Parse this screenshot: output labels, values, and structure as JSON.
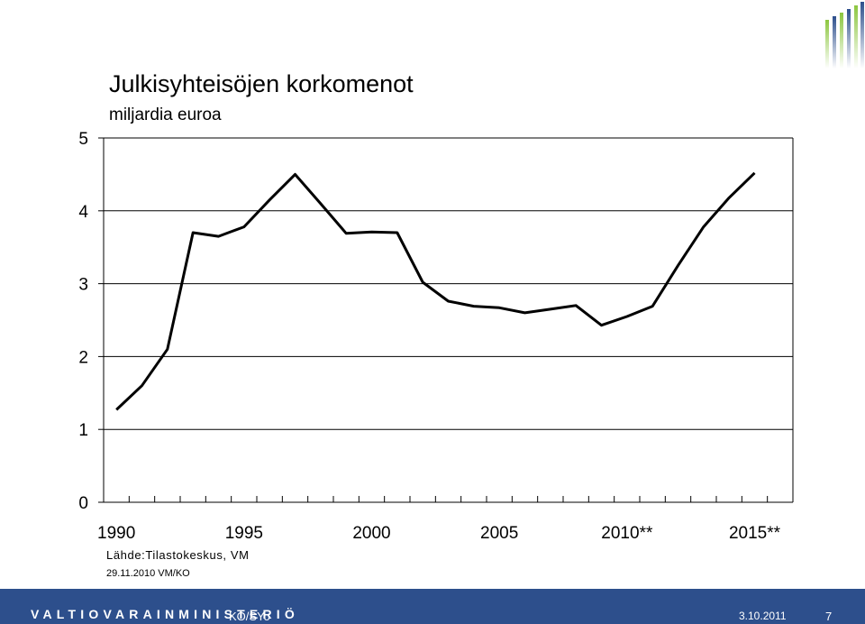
{
  "header": {
    "title": "Julkisyhteisöjen korkomenot",
    "subtitle": "miljardia euroa"
  },
  "chart_data": {
    "type": "line",
    "title": "Julkisyhteisöjen korkomenot",
    "subtitle": "miljardia euroa",
    "xlabel": "",
    "ylabel": "",
    "x": [
      1990,
      1991,
      1992,
      1993,
      1994,
      1995,
      1996,
      1997,
      1998,
      1999,
      2000,
      2001,
      2002,
      2003,
      2004,
      2005,
      2006,
      2007,
      2008,
      2009,
      2010,
      2011,
      2012,
      2013,
      2014,
      2015,
      2016
    ],
    "xlim": [
      1989.5,
      2016.5
    ],
    "x_tick_labels": [
      {
        "x": 1990,
        "label": "1990"
      },
      {
        "x": 1995,
        "label": "1995"
      },
      {
        "x": 2000,
        "label": "2000"
      },
      {
        "x": 2005,
        "label": "2005"
      },
      {
        "x": 2010,
        "label": "2010**"
      },
      {
        "x": 2015,
        "label": "2015**"
      }
    ],
    "ylim": [
      0,
      5
    ],
    "yticks": [
      0,
      1,
      2,
      3,
      4,
      5
    ],
    "grid": "horizontal",
    "series": [
      {
        "color": "#000000",
        "values": [
          1.27,
          1.6,
          2.1,
          3.7,
          3.65,
          3.78,
          4.15,
          4.5,
          4.1,
          3.69,
          3.71,
          3.7,
          3.02,
          2.76,
          2.69,
          2.67,
          2.6,
          2.65,
          2.7,
          2.43,
          2.55,
          2.69,
          3.25,
          3.78,
          4.18,
          4.52,
          null
        ]
      }
    ]
  },
  "source_note": "Lähde:Tilastokeskus, VM",
  "date_note": "29.11.2010 VM/KO",
  "footer": {
    "organization": "VALTIOVARAINMINISTERIÖ",
    "code": "KO/SYo",
    "date": "3.10.2011",
    "page": "7",
    "background": "#2d4f8c"
  },
  "logo": {
    "icon": "bar-stripes-logo",
    "colors": [
      "#8cc63f",
      "#2d4f8c"
    ]
  }
}
